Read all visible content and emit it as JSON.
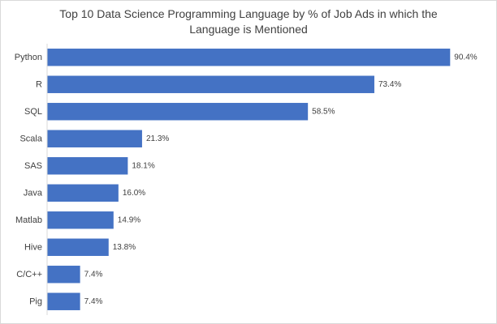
{
  "chart_data": {
    "type": "bar",
    "orientation": "horizontal",
    "title_lines": [
      "Top 10 Data Science Programming Language by % of Job Ads in which the",
      "Language is Mentioned"
    ],
    "categories": [
      "Python",
      "R",
      "SQL",
      "Scala",
      "SAS",
      "Java",
      "Matlab",
      "Hive",
      "C/C++",
      "Pig"
    ],
    "values": [
      90.4,
      73.4,
      58.5,
      21.3,
      18.1,
      16.0,
      14.9,
      13.8,
      7.4,
      7.4
    ],
    "value_labels": [
      "90.4%",
      "73.4%",
      "58.5%",
      "21.3%",
      "18.1%",
      "16.0%",
      "14.9%",
      "13.8%",
      "7.4%",
      "7.4%"
    ],
    "xlabel": "",
    "ylabel": "",
    "xlim": [
      0,
      100
    ],
    "grid": false,
    "legend": "none",
    "bar_color": "#4472c4"
  }
}
